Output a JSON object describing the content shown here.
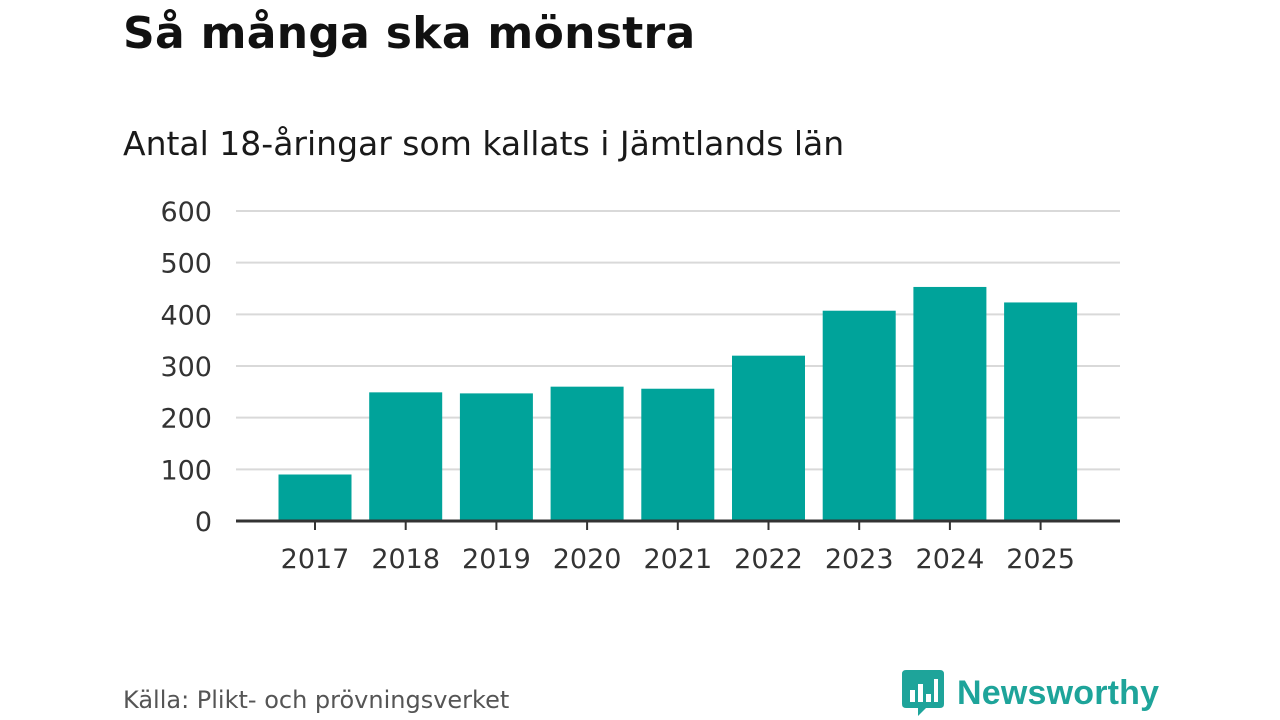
{
  "title": "Så många ska mönstra",
  "subtitle": "Antal 18-åringar som kallats i Jämtlands län",
  "source": "Källa: Plikt- och prövningsverket",
  "brand": {
    "name": "Newsworthy",
    "icon": "newsworthy-logo-icon",
    "color": "#1ea49a"
  },
  "colors": {
    "bar": "#00a39a",
    "grid": "#d9d9d9",
    "axis": "#333333"
  },
  "chart_data": {
    "type": "bar",
    "categories": [
      "2017",
      "2018",
      "2019",
      "2020",
      "2021",
      "2022",
      "2023",
      "2024",
      "2025"
    ],
    "values": [
      90,
      249,
      247,
      260,
      256,
      320,
      407,
      453,
      423
    ],
    "ylim": [
      0,
      600
    ],
    "yticks": [
      "0",
      "100",
      "200",
      "300",
      "400",
      "500",
      "600"
    ],
    "grid": true,
    "xlabel": "",
    "ylabel": ""
  }
}
